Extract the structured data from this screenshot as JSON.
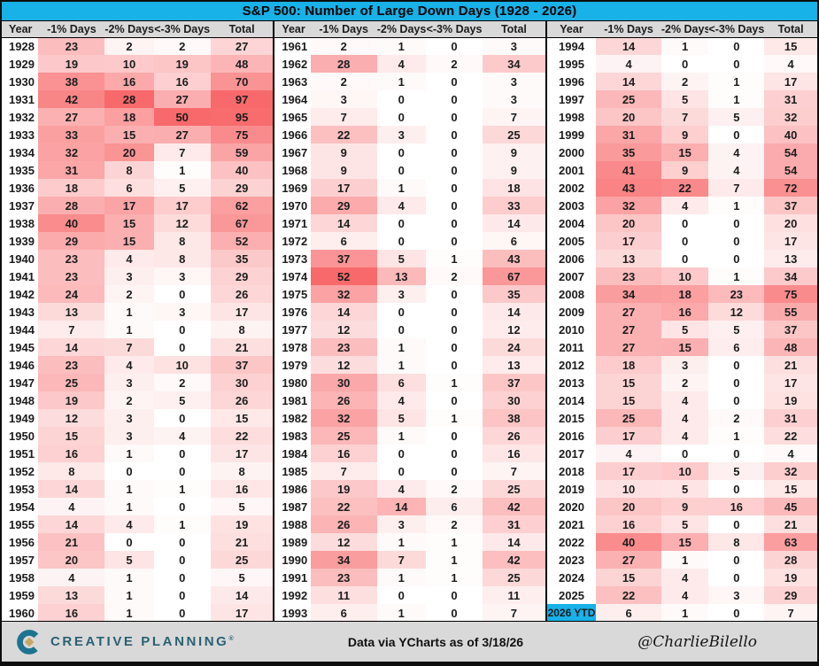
{
  "title": "S&P 500: Number of Large Down Days (1928 - 2026)",
  "colors": {
    "accent_cyan": "#18b1e8",
    "header_gray": "#d9d9d9",
    "heat_max_red": "#f8696b",
    "logo_teal": "#2a6173",
    "logo_mark_teal": "#1e7390",
    "logo_gold": "#c7a663"
  },
  "chart_data": {
    "type": "heatmap",
    "columns": [
      "Year",
      "-1% Days",
      "-2% Days",
      "<-3% Days",
      "Total"
    ],
    "column_max": [
      52,
      28,
      50,
      97
    ],
    "groups": [
      {
        "rows": [
          [
            "1928",
            23,
            2,
            2,
            27
          ],
          [
            "1929",
            19,
            10,
            19,
            48
          ],
          [
            "1930",
            38,
            16,
            16,
            70
          ],
          [
            "1931",
            42,
            28,
            27,
            97
          ],
          [
            "1932",
            27,
            18,
            50,
            95
          ],
          [
            "1933",
            33,
            15,
            27,
            75
          ],
          [
            "1934",
            32,
            20,
            7,
            59
          ],
          [
            "1935",
            31,
            8,
            1,
            40
          ],
          [
            "1936",
            18,
            6,
            5,
            29
          ],
          [
            "1937",
            28,
            17,
            17,
            62
          ],
          [
            "1938",
            40,
            15,
            12,
            67
          ],
          [
            "1939",
            29,
            15,
            8,
            52
          ],
          [
            "1940",
            23,
            4,
            8,
            35
          ],
          [
            "1941",
            23,
            3,
            3,
            29
          ],
          [
            "1942",
            24,
            2,
            0,
            26
          ],
          [
            "1943",
            13,
            1,
            3,
            17
          ],
          [
            "1944",
            7,
            1,
            0,
            8
          ],
          [
            "1945",
            14,
            7,
            0,
            21
          ],
          [
            "1946",
            23,
            4,
            10,
            37
          ],
          [
            "1947",
            25,
            3,
            2,
            30
          ],
          [
            "1948",
            19,
            2,
            5,
            26
          ],
          [
            "1949",
            12,
            3,
            0,
            15
          ],
          [
            "1950",
            15,
            3,
            4,
            22
          ],
          [
            "1951",
            16,
            1,
            0,
            17
          ],
          [
            "1952",
            8,
            0,
            0,
            8
          ],
          [
            "1953",
            14,
            1,
            1,
            16
          ],
          [
            "1954",
            4,
            1,
            0,
            5
          ],
          [
            "1955",
            14,
            4,
            1,
            19
          ],
          [
            "1956",
            21,
            0,
            0,
            21
          ],
          [
            "1957",
            20,
            5,
            0,
            25
          ],
          [
            "1958",
            4,
            1,
            0,
            5
          ],
          [
            "1959",
            13,
            1,
            0,
            14
          ],
          [
            "1960",
            16,
            1,
            0,
            17
          ]
        ]
      },
      {
        "rows": [
          [
            "1961",
            2,
            1,
            0,
            3
          ],
          [
            "1962",
            28,
            4,
            2,
            34
          ],
          [
            "1963",
            2,
            1,
            0,
            3
          ],
          [
            "1964",
            3,
            0,
            0,
            3
          ],
          [
            "1965",
            7,
            0,
            0,
            7
          ],
          [
            "1966",
            22,
            3,
            0,
            25
          ],
          [
            "1967",
            9,
            0,
            0,
            9
          ],
          [
            "1968",
            9,
            0,
            0,
            9
          ],
          [
            "1969",
            17,
            1,
            0,
            18
          ],
          [
            "1970",
            29,
            4,
            0,
            33
          ],
          [
            "1971",
            14,
            0,
            0,
            14
          ],
          [
            "1972",
            6,
            0,
            0,
            6
          ],
          [
            "1973",
            37,
            5,
            1,
            43
          ],
          [
            "1974",
            52,
            13,
            2,
            67
          ],
          [
            "1975",
            32,
            3,
            0,
            35
          ],
          [
            "1976",
            14,
            0,
            0,
            14
          ],
          [
            "1977",
            12,
            0,
            0,
            12
          ],
          [
            "1978",
            23,
            1,
            0,
            24
          ],
          [
            "1979",
            12,
            1,
            0,
            13
          ],
          [
            "1980",
            30,
            6,
            1,
            37
          ],
          [
            "1981",
            26,
            4,
            0,
            30
          ],
          [
            "1982",
            32,
            5,
            1,
            38
          ],
          [
            "1983",
            25,
            1,
            0,
            26
          ],
          [
            "1984",
            16,
            0,
            0,
            16
          ],
          [
            "1985",
            7,
            0,
            0,
            7
          ],
          [
            "1986",
            19,
            4,
            2,
            25
          ],
          [
            "1987",
            22,
            14,
            6,
            42
          ],
          [
            "1988",
            26,
            3,
            2,
            31
          ],
          [
            "1989",
            12,
            1,
            1,
            14
          ],
          [
            "1990",
            34,
            7,
            1,
            42
          ],
          [
            "1991",
            23,
            1,
            1,
            25
          ],
          [
            "1992",
            11,
            0,
            0,
            11
          ],
          [
            "1993",
            6,
            1,
            0,
            7
          ]
        ]
      },
      {
        "rows": [
          [
            "1994",
            14,
            1,
            0,
            15
          ],
          [
            "1995",
            4,
            0,
            0,
            4
          ],
          [
            "1996",
            14,
            2,
            1,
            17
          ],
          [
            "1997",
            25,
            5,
            1,
            31
          ],
          [
            "1998",
            20,
            7,
            5,
            32
          ],
          [
            "1999",
            31,
            9,
            0,
            40
          ],
          [
            "2000",
            35,
            15,
            4,
            54
          ],
          [
            "2001",
            41,
            9,
            4,
            54
          ],
          [
            "2002",
            43,
            22,
            7,
            72
          ],
          [
            "2003",
            32,
            4,
            1,
            37
          ],
          [
            "2004",
            20,
            0,
            0,
            20
          ],
          [
            "2005",
            17,
            0,
            0,
            17
          ],
          [
            "2006",
            13,
            0,
            0,
            13
          ],
          [
            "2007",
            23,
            10,
            1,
            34
          ],
          [
            "2008",
            34,
            18,
            23,
            75
          ],
          [
            "2009",
            27,
            16,
            12,
            55
          ],
          [
            "2010",
            27,
            5,
            5,
            37
          ],
          [
            "2011",
            27,
            15,
            6,
            48
          ],
          [
            "2012",
            18,
            3,
            0,
            21
          ],
          [
            "2013",
            15,
            2,
            0,
            17
          ],
          [
            "2014",
            15,
            4,
            0,
            19
          ],
          [
            "2015",
            25,
            4,
            2,
            31
          ],
          [
            "2016",
            17,
            4,
            1,
            22
          ],
          [
            "2017",
            4,
            0,
            0,
            4
          ],
          [
            "2018",
            17,
            10,
            5,
            32
          ],
          [
            "2019",
            10,
            5,
            0,
            15
          ],
          [
            "2020",
            20,
            9,
            16,
            45
          ],
          [
            "2021",
            16,
            5,
            0,
            21
          ],
          [
            "2022",
            40,
            15,
            8,
            63
          ],
          [
            "2023",
            27,
            1,
            0,
            28
          ],
          [
            "2024",
            15,
            4,
            0,
            19
          ],
          [
            "2025",
            22,
            4,
            3,
            29
          ],
          [
            "2026 YTD",
            6,
            1,
            0,
            7
          ]
        ]
      }
    ]
  },
  "footer": {
    "brand": "CREATIVE PLANNING",
    "trademark": "®",
    "source_note": "Data via YCharts as of 3/18/26",
    "handle": "@CharlieBilello"
  }
}
